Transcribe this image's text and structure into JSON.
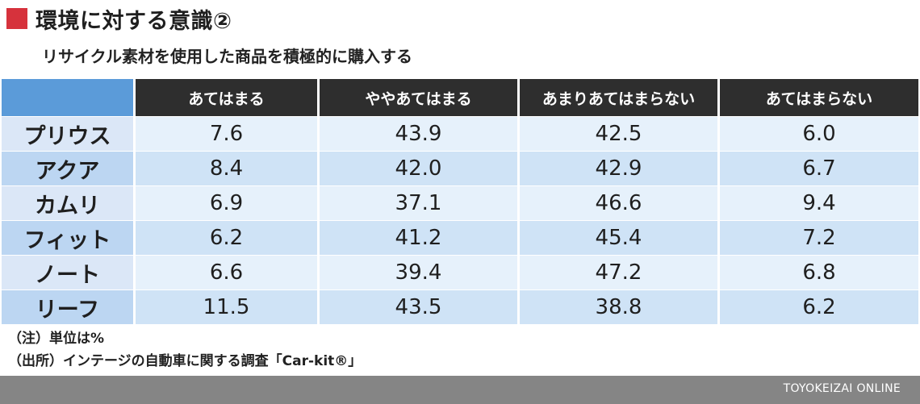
{
  "header": {
    "title": "環境に対する意識②",
    "subtitle": "リサイクル素材を使用した商品を積極的に購入する"
  },
  "chart_data": {
    "type": "table",
    "columns": [
      "あてはまる",
      "ややあてはまる",
      "あまりあてはまらない",
      "あてはまらない"
    ],
    "rows": [
      {
        "label": "プリウス",
        "values": [
          "7.6",
          "43.9",
          "42.5",
          "6.0"
        ]
      },
      {
        "label": "アクア",
        "values": [
          "8.4",
          "42.0",
          "42.9",
          "6.7"
        ]
      },
      {
        "label": "カムリ",
        "values": [
          "6.9",
          "37.1",
          "46.6",
          "9.4"
        ]
      },
      {
        "label": "フィット",
        "values": [
          "6.2",
          "41.2",
          "45.4",
          "7.2"
        ]
      },
      {
        "label": "ノート",
        "values": [
          "6.6",
          "39.4",
          "47.2",
          "6.8"
        ]
      },
      {
        "label": "リーフ",
        "values": [
          "11.5",
          "43.5",
          "38.8",
          "6.2"
        ]
      }
    ]
  },
  "notes": {
    "unit": "（注）単位は%",
    "source": "（出所）インテージの自動車に関する調査「Car-kit®」"
  },
  "footer": {
    "brand": "TOYOKEIZAI ONLINE"
  },
  "colors": {
    "title_mark": "#d6323c",
    "header_bg": "#2e2e2e",
    "corner_bg": "#5b9bd9",
    "row_light": "#e6f1fb",
    "row_dark": "#cfe3f6",
    "footer_bg": "#858585"
  }
}
